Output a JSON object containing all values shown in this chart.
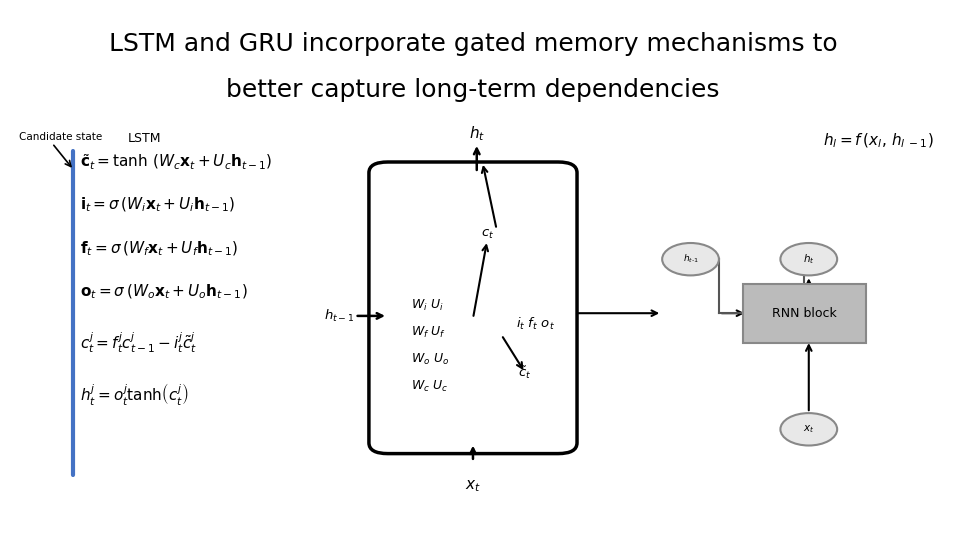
{
  "title_line1": "LSTM and GRU incorporate gated memory mechanisms to",
  "title_line2": "better capture long-term dependencies",
  "title_fontsize": 18,
  "title_font": "DejaVu Sans",
  "bg_color": "#ffffff",
  "left_label": "Candidate state",
  "lstm_label": "LSTM",
  "equations": [
    "$\\tilde{\\mathbf{c}}_t = \\tanh\\,(W_c\\mathbf{x}_t + U_c\\mathbf{h}_{t-1})$",
    "$\\mathbf{i}_t = \\sigma\\,(W_i\\mathbf{x}_t + U_i\\mathbf{h}_{t-1})$",
    "$\\mathbf{f}_t = \\sigma\\,(W_f\\mathbf{x}_t + U_f\\mathbf{h}_{t-1})$",
    "$\\mathbf{o}_t = \\sigma\\,(W_o\\mathbf{x}_t + U_o\\mathbf{h}_{t-1})$",
    "$c_t^j = f_t^j c_{t-1}^j - i_t^j \\tilde{c}_t^j$",
    "$h_t^j = o_t^j \\tanh\\!\\left(c_t^j\\right)$"
  ],
  "rnn_formula": "$h_l = f\\,(x_l,\\, h_{l\\;-1})$",
  "rnn_block_label": "RNN block",
  "blue_line_x": 0.077,
  "blue_line_color": "#4472C4"
}
